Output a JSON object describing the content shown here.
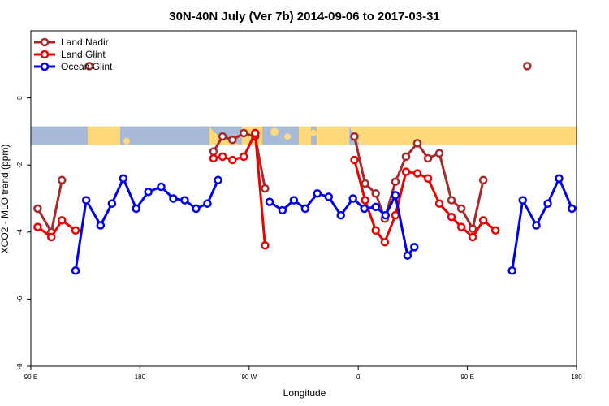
{
  "chart_data": {
    "type": "line",
    "title": "30N-40N July (Ver 7b)   2014-09-06 to 2017-03-31",
    "xlabel": "Longitude",
    "ylabel": "XCO2 - MLO trend (ppm)",
    "xlim": [
      0,
      360
    ],
    "ylim": [
      -8,
      2
    ],
    "x_ticks": [
      {
        "value": 0,
        "label": "90 E"
      },
      {
        "value": 72,
        "label": "180"
      },
      {
        "value": 144,
        "label": "90 W"
      },
      {
        "value": 216,
        "label": "0"
      },
      {
        "value": 288,
        "label": "90 E"
      },
      {
        "value": 360,
        "label": "180"
      }
    ],
    "y_ticks": [
      {
        "value": 0,
        "label": "0"
      },
      {
        "value": -2,
        "label": "-2"
      },
      {
        "value": -4,
        "label": "-4"
      },
      {
        "value": -6,
        "label": "-6"
      },
      {
        "value": -8,
        "label": "-8"
      }
    ],
    "legend_position": "top-left",
    "map_strip": {
      "y_top": -0.85,
      "y_bottom": -1.4,
      "land_color": "#FFD97A",
      "ocean_color": "#A7BBD9"
    },
    "series": [
      {
        "name": "Land Nadir",
        "color": "#A52A2A",
        "segments": [
          [
            [
              4.5,
              -3.3
            ],
            [
              13.5,
              -4.0
            ],
            [
              20.5,
              -2.45
            ]
          ],
          [
            [
              38.5,
              0.95
            ]
          ],
          [
            [
              120.5,
              -1.6
            ],
            [
              126.5,
              -1.15
            ],
            [
              133,
              -1.25
            ],
            [
              140.5,
              -1.05
            ],
            [
              148,
              -1.15
            ],
            [
              154.5,
              -2.7
            ]
          ],
          [
            [
              213.5,
              -1.15
            ],
            [
              220.5,
              -2.55
            ],
            [
              227.5,
              -2.85
            ],
            [
              233.5,
              -3.6
            ],
            [
              240.5,
              -2.5
            ],
            [
              247.5,
              -1.75
            ],
            [
              255,
              -1.35
            ],
            [
              262,
              -1.8
            ],
            [
              269.5,
              -1.65
            ],
            [
              277.5,
              -3.05
            ],
            [
              284,
              -3.3
            ],
            [
              291.5,
              -3.9
            ],
            [
              298.5,
              -2.45
            ]
          ],
          [
            [
              327.5,
              0.95
            ]
          ]
        ]
      },
      {
        "name": "Land Glint",
        "color": "#EE0000",
        "segments": [
          [
            [
              4.5,
              -3.85
            ],
            [
              13.5,
              -4.15
            ],
            [
              20.5,
              -3.65
            ],
            [
              29.5,
              -3.95
            ]
          ],
          [
            [
              120.5,
              -1.8
            ],
            [
              126.5,
              -1.75
            ],
            [
              133,
              -1.85
            ],
            [
              140.5,
              -1.75
            ],
            [
              148,
              -1.05
            ],
            [
              154.5,
              -4.4
            ]
          ],
          [
            [
              213.5,
              -1.85
            ],
            [
              220.5,
              -3.05
            ],
            [
              227.5,
              -3.95
            ],
            [
              233.5,
              -4.3
            ],
            [
              240.5,
              -3.5
            ],
            [
              247.5,
              -2.2
            ],
            [
              255,
              -2.25
            ],
            [
              262,
              -2.4
            ],
            [
              269.5,
              -3.15
            ],
            [
              277.5,
              -3.55
            ],
            [
              284,
              -3.85
            ],
            [
              291.5,
              -4.15
            ],
            [
              298.5,
              -3.65
            ],
            [
              306.5,
              -3.95
            ]
          ]
        ]
      },
      {
        "name": "Ocean Glint",
        "color": "#0000EE",
        "segments": [
          [
            [
              29.5,
              -5.15
            ],
            [
              36.5,
              -3.05
            ],
            [
              46,
              -3.8
            ],
            [
              53.5,
              -3.15
            ],
            [
              61,
              -2.4
            ],
            [
              69.5,
              -3.3
            ],
            [
              77.5,
              -2.8
            ],
            [
              86,
              -2.65
            ],
            [
              94,
              -3.0
            ],
            [
              101.5,
              -3.05
            ],
            [
              109,
              -3.3
            ],
            [
              116.5,
              -3.15
            ],
            [
              123.5,
              -2.45
            ]
          ],
          [
            [
              157.5,
              -3.1
            ],
            [
              166,
              -3.35
            ],
            [
              173.5,
              -3.05
            ],
            [
              181,
              -3.3
            ],
            [
              189,
              -2.85
            ],
            [
              196.5,
              -2.95
            ],
            [
              204.5,
              -3.5
            ],
            [
              212.5,
              -3.0
            ],
            [
              220,
              -3.3
            ],
            [
              227.5,
              -3.25
            ],
            [
              234,
              -3.5
            ],
            [
              240.5,
              -2.9
            ],
            [
              248.5,
              -4.7
            ],
            [
              253,
              -4.45
            ]
          ],
          [
            [
              317.5,
              -5.15
            ],
            [
              324.5,
              -3.05
            ],
            [
              333.5,
              -3.8
            ],
            [
              341,
              -3.15
            ],
            [
              348.5,
              -2.4
            ],
            [
              357,
              -3.3
            ]
          ]
        ]
      }
    ]
  }
}
